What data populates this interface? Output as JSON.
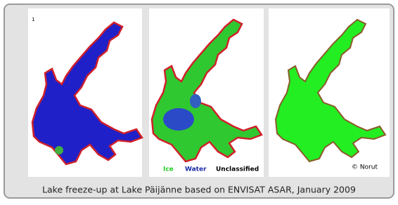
{
  "panel_label": "1",
  "legend": {
    "ice": "Ice",
    "water": "Water",
    "unclassified": "Unclassified"
  },
  "credit": "© Norut",
  "caption": "Lake freeze-up at Lake Päijänne based on ENVISAT ASAR, January 2009"
}
